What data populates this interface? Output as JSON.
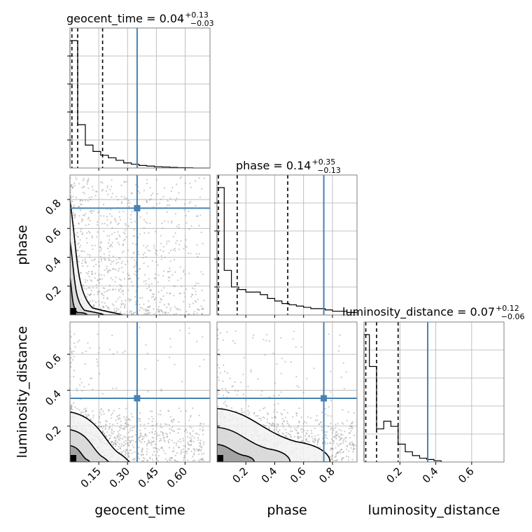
{
  "chart_data": {
    "type": "corner",
    "parameters": [
      "geocent_time",
      "phase",
      "luminosity_distance"
    ],
    "injection": {
      "geocent_time": 0.35,
      "phase": 0.74,
      "luminosity_distance": 0.355
    },
    "truth_color": "#4682b4",
    "diagonal": [
      {
        "parameter": "geocent_time",
        "title": "geocent_time = 0.04",
        "title_sup": "+0.13",
        "title_sub": "−0.03",
        "xlim": [
          0,
          0.73
        ],
        "quantile_lines": [
          0.01,
          0.04,
          0.17
        ],
        "bin_edges": [
          0,
          0.04,
          0.08,
          0.12,
          0.16,
          0.2,
          0.24,
          0.28,
          0.32,
          0.36,
          0.4,
          0.44,
          0.48,
          0.52,
          0.56,
          0.6,
          0.64,
          0.68,
          0.73
        ],
        "counts": [
          1.0,
          0.34,
          0.18,
          0.13,
          0.1,
          0.08,
          0.06,
          0.04,
          0.03,
          0.02,
          0.015,
          0.01,
          0.008,
          0.005,
          0.003,
          0.002,
          0.0,
          0.0
        ],
        "xticks": [
          0.15,
          0.3,
          0.45,
          0.6
        ],
        "xticklabels": [
          "0.15",
          "0.30",
          "0.45",
          "0.60"
        ]
      },
      {
        "parameter": "phase",
        "title": "phase = 0.14",
        "title_sup": "+0.35",
        "title_sub": "−0.13",
        "xlim": [
          0,
          0.97
        ],
        "quantile_lines": [
          0.01,
          0.14,
          0.49
        ],
        "bin_edges": [
          0,
          0.05,
          0.1,
          0.15,
          0.2,
          0.25,
          0.3,
          0.35,
          0.4,
          0.45,
          0.5,
          0.55,
          0.6,
          0.65,
          0.7,
          0.75,
          0.8,
          0.85,
          0.9,
          0.97
        ],
        "counts": [
          1.0,
          0.35,
          0.22,
          0.2,
          0.18,
          0.18,
          0.16,
          0.13,
          0.11,
          0.09,
          0.08,
          0.07,
          0.06,
          0.05,
          0.05,
          0.04,
          0.03,
          0.03,
          0.02
        ],
        "xticks": [
          0.2,
          0.4,
          0.6,
          0.8
        ],
        "xticklabels": [
          "0.2",
          "0.4",
          "0.6",
          "0.8"
        ]
      },
      {
        "parameter": "luminosity_distance",
        "title": "luminosity_distance = 0.07",
        "title_sup": "+0.12",
        "title_sub": "−0.06",
        "xlim": [
          0,
          0.78
        ],
        "quantile_lines": [
          0.01,
          0.07,
          0.19
        ],
        "bin_edges": [
          0,
          0.03,
          0.07,
          0.11,
          0.15,
          0.19,
          0.23,
          0.27,
          0.31,
          0.35,
          0.39,
          0.43
        ],
        "counts": [
          1.0,
          0.75,
          0.26,
          0.32,
          0.28,
          0.14,
          0.08,
          0.05,
          0.03,
          0.02,
          0.01
        ],
        "xticks": [
          0.2,
          0.4,
          0.6
        ],
        "xticklabels": [
          "0.2",
          "0.4",
          "0.6"
        ]
      }
    ],
    "panels_2d": [
      {
        "x": "geocent_time",
        "y": "phase",
        "xlim": [
          0,
          0.73
        ],
        "ylim": [
          0,
          0.97
        ]
      },
      {
        "x": "geocent_time",
        "y": "luminosity_distance",
        "xlim": [
          0,
          0.73
        ],
        "ylim": [
          0,
          0.78
        ]
      },
      {
        "x": "phase",
        "y": "luminosity_distance",
        "xlim": [
          0,
          0.97
        ],
        "ylim": [
          0,
          0.78
        ]
      }
    ],
    "yticks": {
      "phase": {
        "values": [
          0.2,
          0.4,
          0.6,
          0.8
        ],
        "labels": [
          "0.2",
          "0.4",
          "0.6",
          "0.8"
        ]
      },
      "luminosity_distance": {
        "values": [
          0.2,
          0.4,
          0.6
        ],
        "labels": [
          "0.2",
          "0.4",
          "0.6"
        ]
      }
    },
    "axis_labels": {
      "bottom": [
        "geocent_time",
        "phase",
        "luminosity_distance"
      ],
      "left": [
        "phase",
        "luminosity_distance"
      ]
    },
    "grid": true
  }
}
